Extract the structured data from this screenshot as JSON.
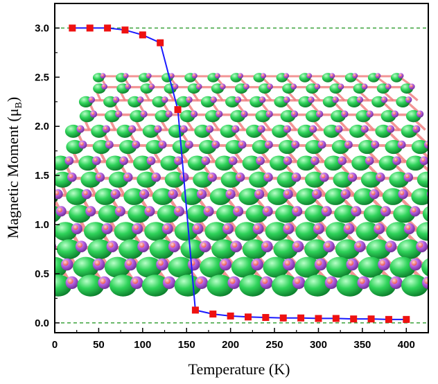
{
  "chart_data": {
    "type": "line",
    "title": "",
    "xlabel": "Temperature (K)",
    "ylabel": "Magnetic Moment (μ",
    "ylabel_sub": "B",
    "ylabel_close": ")",
    "xlim": [
      0,
      425
    ],
    "ylim": [
      -0.1,
      3.25
    ],
    "xticks": [
      "0",
      "50",
      "100",
      "150",
      "200",
      "250",
      "300",
      "350",
      "400"
    ],
    "yticks": [
      "0.0",
      "0.5",
      "1.0",
      "1.5",
      "2.0",
      "2.5",
      "3.0"
    ],
    "reference_lines": [
      0.0,
      3.0
    ],
    "series": [
      {
        "x": [
          20,
          40,
          60,
          80,
          100,
          120,
          140,
          160,
          180,
          200,
          220,
          240,
          260,
          280,
          300,
          320,
          340,
          360,
          380,
          400
        ],
        "y": [
          3.0,
          3.0,
          3.0,
          2.98,
          2.93,
          2.85,
          2.17,
          0.13,
          0.09,
          0.07,
          0.06,
          0.055,
          0.05,
          0.05,
          0.045,
          0.045,
          0.04,
          0.04,
          0.035,
          0.035
        ]
      }
    ],
    "colors": {
      "line": "#1a1aff",
      "marker": "#ee1111",
      "reference": "#2a9a2a",
      "atom_large": "#2fd35a",
      "atom_small": "#b15cdc",
      "bond": "#f07a7a"
    },
    "grid": false,
    "legend": "none"
  }
}
